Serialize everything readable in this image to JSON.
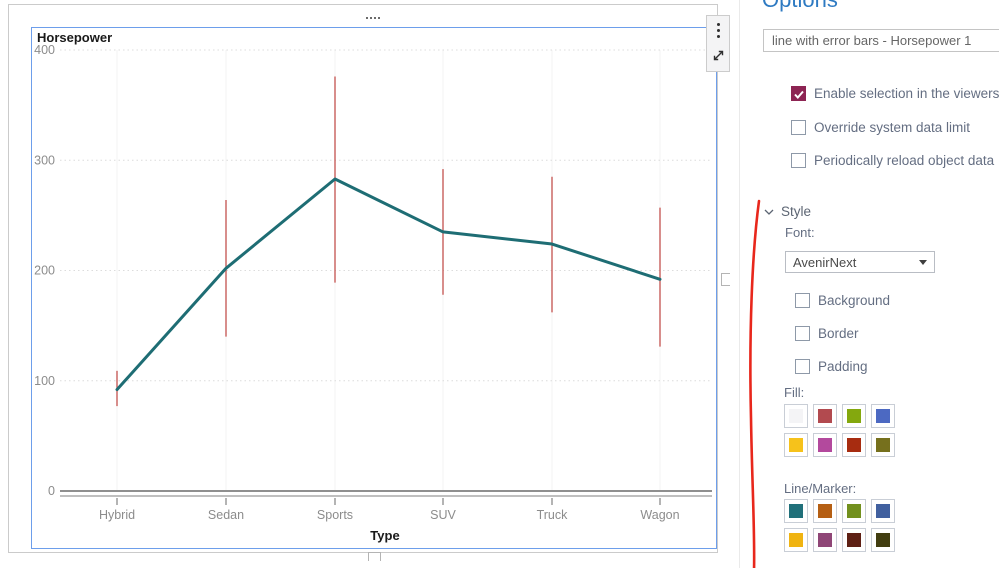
{
  "canvas": {
    "chart": {
      "chart_data": {
        "type": "line",
        "title": "Horsepower",
        "xlabel": "Type",
        "ylabel": "",
        "categories": [
          "Hybrid",
          "Sedan",
          "Sports",
          "SUV",
          "Truck",
          "Wagon"
        ],
        "series": [
          {
            "name": "Horsepower",
            "values": [
              92,
              202,
              283,
              235,
              224,
              192
            ]
          }
        ],
        "error_bars": {
          "low": [
            77,
            140,
            189,
            178,
            162,
            131
          ],
          "high": [
            109,
            264,
            376,
            292,
            285,
            257
          ]
        },
        "yticks": [
          0,
          100,
          200,
          300,
          400
        ],
        "ylim": [
          0,
          400
        ],
        "grid": "horizontal-dotted",
        "legend": "none",
        "line_color": "#1e6d74",
        "error_bar_color": "#c4524e",
        "selection_border_color": "#6d9eeb"
      },
      "icons": {
        "menu": "kebab-vertical",
        "maximize": "diagonal-expand-arrows",
        "drag_handle": "four-dots"
      }
    }
  },
  "options_panel": {
    "title": "Options",
    "object_selector_value": "line with error bars - Horsepower 1",
    "checkboxes": [
      {
        "label": "Enable selection in the viewers",
        "checked": true
      },
      {
        "label": "Override system data limit",
        "checked": false
      },
      {
        "label": "Periodically reload object data",
        "checked": false
      }
    ],
    "style": {
      "header": "Style",
      "collapse_icon": "chevron-down",
      "font_label": "Font:",
      "font_value": "AvenirNext",
      "checkboxes": [
        {
          "label": "Background",
          "checked": false
        },
        {
          "label": "Border",
          "checked": false
        },
        {
          "label": "Padding",
          "checked": false
        }
      ],
      "fill_label": "Fill:",
      "fill_colors": [
        "#f4f4f6",
        "#b24a4f",
        "#84a80e",
        "#4c69c2",
        "#f6c21b",
        "#b3499d",
        "#a72c10",
        "#76701d"
      ],
      "line_marker_label": "Line/Marker:",
      "line_marker_colors": [
        "#20707a",
        "#b55f14",
        "#72901e",
        "#41609f",
        "#f0b411",
        "#8f4677",
        "#5e2014",
        "#413d10"
      ]
    },
    "annotation_color": "#e8271c"
  }
}
